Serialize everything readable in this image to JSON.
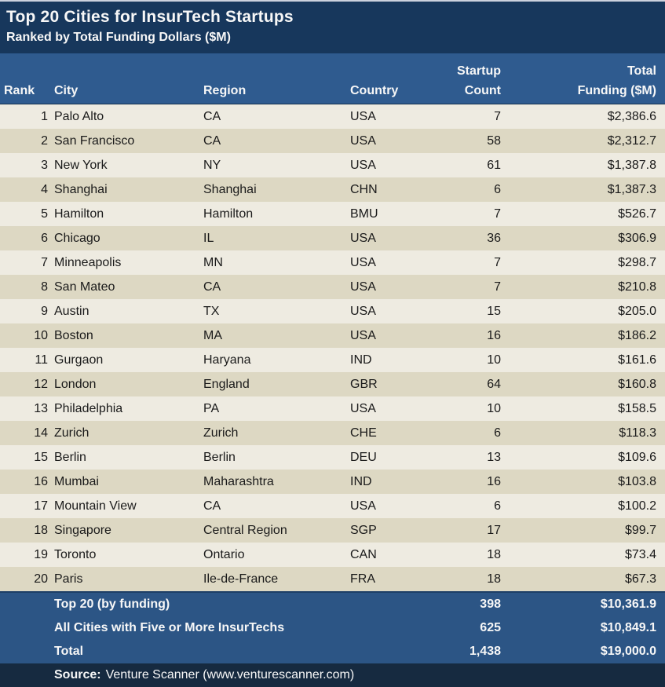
{
  "colors": {
    "title_bar": "#17375C",
    "header_row": "#2F5B8F",
    "row_odd": "#EEEBE1",
    "row_even": "#DDD8C3",
    "summary_bar": "#2C5585",
    "source_bar": "#162A40",
    "body_text": "#1A1A1A",
    "header_text": "#F7F7F7",
    "top_edge": "#CCD1DD"
  },
  "header": {
    "title": "Top 20 Cities for InsurTech Startups",
    "subtitle": "Ranked by Total Funding Dollars ($M)",
    "columns": [
      {
        "line1": "",
        "line2": "Rank"
      },
      {
        "line1": "",
        "line2": "City"
      },
      {
        "line1": "",
        "line2": "Region"
      },
      {
        "line1": "",
        "line2": "Country"
      },
      {
        "line1": "Startup",
        "line2": "Count"
      },
      {
        "line1": "Total",
        "line2": "Funding ($M)"
      }
    ]
  },
  "chart_data": {
    "type": "table",
    "title": "Top 20 Cities for InsurTech Startups",
    "subtitle": "Ranked by Total Funding Dollars ($M)",
    "columns": [
      "Rank",
      "City",
      "Region",
      "Country",
      "Startup Count",
      "Total Funding ($M)"
    ],
    "rows": [
      [
        "1",
        "Palo Alto",
        "CA",
        "USA",
        "7",
        "$2,386.6"
      ],
      [
        "2",
        "San Francisco",
        "CA",
        "USA",
        "58",
        "$2,312.7"
      ],
      [
        "3",
        "New York",
        "NY",
        "USA",
        "61",
        "$1,387.8"
      ],
      [
        "4",
        "Shanghai",
        "Shanghai",
        "CHN",
        "6",
        "$1,387.3"
      ],
      [
        "5",
        "Hamilton",
        "Hamilton",
        "BMU",
        "7",
        "$526.7"
      ],
      [
        "6",
        "Chicago",
        "IL",
        "USA",
        "36",
        "$306.9"
      ],
      [
        "7",
        "Minneapolis",
        "MN",
        "USA",
        "7",
        "$298.7"
      ],
      [
        "8",
        "San Mateo",
        "CA",
        "USA",
        "7",
        "$210.8"
      ],
      [
        "9",
        "Austin",
        "TX",
        "USA",
        "15",
        "$205.0"
      ],
      [
        "10",
        "Boston",
        "MA",
        "USA",
        "16",
        "$186.2"
      ],
      [
        "11",
        "Gurgaon",
        "Haryana",
        "IND",
        "10",
        "$161.6"
      ],
      [
        "12",
        "London",
        "England",
        "GBR",
        "64",
        "$160.8"
      ],
      [
        "13",
        "Philadelphia",
        "PA",
        "USA",
        "10",
        "$158.5"
      ],
      [
        "14",
        "Zurich",
        "Zurich",
        "CHE",
        "6",
        "$118.3"
      ],
      [
        "15",
        "Berlin",
        "Berlin",
        "DEU",
        "13",
        "$109.6"
      ],
      [
        "16",
        "Mumbai",
        "Maharashtra",
        "IND",
        "16",
        "$103.8"
      ],
      [
        "17",
        "Mountain View",
        "CA",
        "USA",
        "6",
        "$100.2"
      ],
      [
        "18",
        "Singapore",
        "Central Region",
        "SGP",
        "17",
        "$99.7"
      ],
      [
        "19",
        "Toronto",
        "Ontario",
        "CAN",
        "18",
        "$73.4"
      ],
      [
        "20",
        "Paris",
        "Ile-de-France",
        "FRA",
        "18",
        "$67.3"
      ]
    ],
    "summary_rows": [
      {
        "label": "Top 20 (by funding)",
        "startup_count": "398",
        "total_funding": "$10,361.9"
      },
      {
        "label": "All Cities with Five or More InsurTechs",
        "startup_count": "625",
        "total_funding": "$10,849.1"
      },
      {
        "label": "Total",
        "startup_count": "1,438",
        "total_funding": "$19,000.0"
      }
    ],
    "source": {
      "label": "Source:",
      "text": "Venture Scanner (www.venturescanner.com)"
    }
  }
}
